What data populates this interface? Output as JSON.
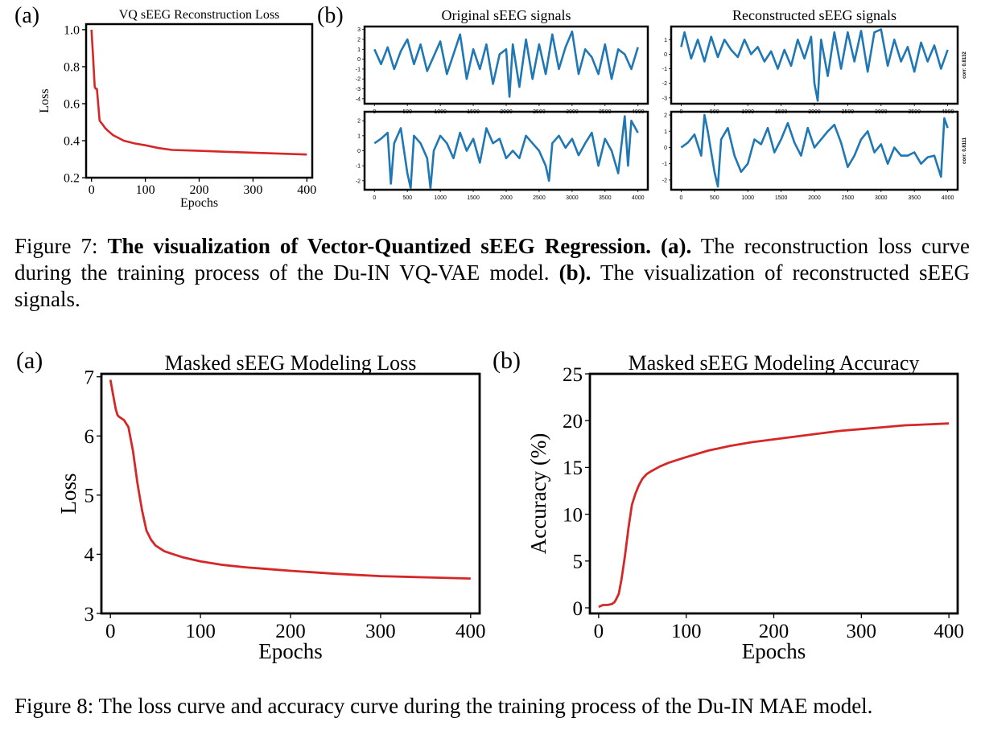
{
  "figure7": {
    "panel_a_label": "(a)",
    "panel_b_label": "(b)",
    "caption": {
      "figure_label": "Figure 7:",
      "bold_title": "The visualization of Vector-Quantized sEEG Regression.",
      "part_a_label": "(a).",
      "part_a_text": "The reconstruction loss curve during the training process of the Du-IN VQ-VAE model.",
      "part_b_label": "(b).",
      "part_b_text": "The visualization of reconstructed sEEG signals."
    }
  },
  "figure8": {
    "panel_a_label": "(a)",
    "panel_b_label": "(b)",
    "caption": "Figure 8: The loss curve and accuracy curve during the training process of the Du-IN MAE model."
  },
  "chart_data": [
    {
      "id": "vq-loss",
      "type": "line",
      "title": "VQ sEEG Reconstruction Loss",
      "xlabel": "Epochs",
      "ylabel": "Loss",
      "xlim": [
        -10,
        410
      ],
      "ylim": [
        0.2,
        1.03
      ],
      "xticks": [
        0,
        100,
        200,
        300,
        400
      ],
      "yticks": [
        0.2,
        0.4,
        0.6,
        0.8,
        1.0
      ],
      "ytick_labels": [
        "0.2",
        "0.4",
        "0.6",
        "0.8",
        "1.0"
      ],
      "color": "#d62728",
      "series": [
        {
          "name": "loss",
          "x": [
            0,
            3,
            6,
            8,
            10,
            13,
            15,
            17,
            20,
            25,
            30,
            40,
            50,
            60,
            80,
            100,
            125,
            150,
            200,
            250,
            300,
            350,
            400
          ],
          "y": [
            1.0,
            0.85,
            0.69,
            0.68,
            0.68,
            0.58,
            0.51,
            0.5,
            0.49,
            0.47,
            0.455,
            0.43,
            0.415,
            0.4,
            0.385,
            0.375,
            0.36,
            0.35,
            0.345,
            0.34,
            0.335,
            0.33,
            0.325
          ]
        }
      ]
    },
    {
      "id": "seeg-original",
      "type": "line",
      "title": "Original sEEG signals",
      "color": "#1f77b4",
      "xticks": [
        0,
        500,
        1000,
        1500,
        2000,
        2500,
        3000,
        3500,
        4000
      ],
      "subplots": [
        {
          "name": "original-channel-1",
          "ylim": [
            -4.5,
            3.3
          ],
          "yticks": [
            -4,
            -3,
            -2,
            -1,
            0,
            1,
            2,
            3
          ],
          "x": [
            0,
            100,
            200,
            300,
            400,
            500,
            600,
            700,
            800,
            900,
            1000,
            1100,
            1200,
            1300,
            1400,
            1500,
            1600,
            1700,
            1800,
            1900,
            2000,
            2050,
            2100,
            2200,
            2300,
            2400,
            2500,
            2600,
            2700,
            2800,
            2900,
            3000,
            3100,
            3200,
            3300,
            3400,
            3500,
            3600,
            3700,
            3800,
            3900,
            4000
          ],
          "y": [
            1.0,
            -0.5,
            1.2,
            -1.0,
            0.8,
            2.0,
            -0.5,
            1.5,
            -1.2,
            0.3,
            1.8,
            -1.5,
            0.5,
            2.5,
            -2.0,
            1.0,
            -1.0,
            1.5,
            -2.5,
            0.5,
            1.0,
            -3.8,
            1.5,
            -2.8,
            2.0,
            -2.0,
            1.5,
            -1.5,
            2.5,
            -1.0,
            1.2,
            2.8,
            -1.5,
            1.0,
            0.2,
            -1.5,
            1.5,
            -2.0,
            1.0,
            0.5,
            -1.0,
            1.2
          ]
        },
        {
          "name": "original-channel-2",
          "ylim": [
            -2.6,
            2.6
          ],
          "yticks": [
            -2,
            -1,
            0,
            1,
            2
          ],
          "x": [
            0,
            100,
            200,
            250,
            300,
            400,
            500,
            550,
            600,
            700,
            800,
            850,
            900,
            1000,
            1100,
            1200,
            1300,
            1400,
            1500,
            1600,
            1700,
            1800,
            1900,
            2000,
            2100,
            2200,
            2300,
            2400,
            2500,
            2600,
            2650,
            2700,
            2800,
            2900,
            3000,
            3100,
            3200,
            3300,
            3400,
            3500,
            3600,
            3700,
            3800,
            3850,
            3900,
            4000
          ],
          "y": [
            0.5,
            0.8,
            1.2,
            -2.2,
            0.5,
            1.5,
            -1.5,
            -2.5,
            1.0,
            0.5,
            -0.5,
            -2.5,
            0.0,
            1.0,
            0.5,
            -0.5,
            1.2,
            0.0,
            0.8,
            -0.8,
            1.5,
            0.5,
            0.8,
            -0.5,
            0.0,
            -0.5,
            1.0,
            0.5,
            0.0,
            -1.0,
            -2.0,
            0.5,
            1.0,
            0.2,
            0.8,
            -0.3,
            0.5,
            1.2,
            -1.0,
            0.8,
            0.0,
            -1.5,
            2.3,
            -1.0,
            2.0,
            1.2
          ]
        }
      ]
    },
    {
      "id": "seeg-reconstructed",
      "type": "line",
      "title": "Reconstructed sEEG signals",
      "color": "#1f77b4",
      "xticks": [
        0,
        500,
        1000,
        1500,
        2000,
        2500,
        3000,
        3500,
        4000
      ],
      "subplots": [
        {
          "name": "reconstructed-channel-1",
          "side_label": "corr: 0.8132",
          "ylim": [
            -3.4,
            1.9
          ],
          "yticks": [
            -3,
            -2,
            -1,
            0,
            1
          ],
          "x": [
            0,
            50,
            150,
            250,
            350,
            450,
            550,
            650,
            750,
            850,
            950,
            1050,
            1150,
            1250,
            1350,
            1450,
            1550,
            1650,
            1750,
            1850,
            1950,
            2000,
            2050,
            2100,
            2200,
            2300,
            2400,
            2500,
            2600,
            2700,
            2800,
            2900,
            3000,
            3100,
            3200,
            3300,
            3400,
            3500,
            3600,
            3700,
            3800,
            3900,
            4000
          ],
          "y": [
            0.5,
            1.5,
            -0.3,
            1.0,
            -0.5,
            1.2,
            -0.2,
            1.0,
            0.3,
            -0.2,
            1.0,
            0.0,
            0.5,
            -0.5,
            0.2,
            -1.0,
            0.3,
            -0.8,
            1.0,
            -0.3,
            1.2,
            -2.0,
            -3.2,
            1.0,
            -1.5,
            1.5,
            -1.0,
            1.5,
            -0.5,
            1.6,
            -1.2,
            1.5,
            1.7,
            -0.8,
            1.0,
            -0.5,
            0.5,
            -1.2,
            0.8,
            -0.5,
            0.6,
            -1.0,
            0.3
          ]
        },
        {
          "name": "reconstructed-channel-2",
          "side_label": "corr: 0.8111",
          "ylim": [
            -2.6,
            2.2
          ],
          "yticks": [
            -2,
            -1,
            0,
            1,
            2
          ],
          "x": [
            0,
            100,
            200,
            300,
            350,
            400,
            500,
            550,
            600,
            700,
            800,
            900,
            1000,
            1100,
            1200,
            1300,
            1400,
            1500,
            1600,
            1700,
            1800,
            1900,
            2000,
            2100,
            2200,
            2300,
            2400,
            2500,
            2600,
            2700,
            2800,
            2900,
            3000,
            3100,
            3200,
            3300,
            3400,
            3500,
            3600,
            3700,
            3800,
            3900,
            3950,
            4000
          ],
          "y": [
            0.0,
            0.3,
            0.8,
            -0.5,
            2.0,
            1.0,
            -1.5,
            -2.4,
            0.5,
            1.2,
            -0.5,
            -1.5,
            -1.0,
            0.5,
            0.2,
            1.2,
            -0.3,
            0.5,
            1.5,
            0.3,
            -0.5,
            1.2,
            0.0,
            0.5,
            1.0,
            1.4,
            0.3,
            -1.2,
            -0.5,
            0.5,
            1.0,
            -0.3,
            0.2,
            -1.0,
            0.0,
            -0.5,
            -0.5,
            -0.3,
            -1.0,
            -0.6,
            -0.5,
            -1.8,
            1.8,
            1.2
          ]
        }
      ]
    },
    {
      "id": "mae-loss",
      "type": "line",
      "title": "Masked sEEG Modeling Loss",
      "xlabel": "Epochs",
      "ylabel": "Loss",
      "xlim": [
        -10,
        410
      ],
      "ylim": [
        3,
        7.05
      ],
      "xticks": [
        0,
        100,
        200,
        300,
        400
      ],
      "yticks": [
        3,
        4,
        5,
        6,
        7
      ],
      "color": "#d62728",
      "series": [
        {
          "name": "loss",
          "x": [
            0,
            3,
            6,
            8,
            10,
            15,
            20,
            25,
            30,
            35,
            40,
            45,
            50,
            60,
            70,
            80,
            100,
            125,
            150,
            175,
            200,
            250,
            300,
            350,
            400
          ],
          "y": [
            6.95,
            6.7,
            6.45,
            6.35,
            6.32,
            6.27,
            6.15,
            5.75,
            5.2,
            4.75,
            4.4,
            4.25,
            4.15,
            4.05,
            4.0,
            3.95,
            3.88,
            3.82,
            3.78,
            3.75,
            3.72,
            3.67,
            3.63,
            3.61,
            3.59
          ]
        }
      ]
    },
    {
      "id": "mae-accuracy",
      "type": "line",
      "title": "Masked sEEG Modeling Accuracy",
      "xlabel": "Epochs",
      "ylabel": "Accuracy (%)",
      "xlim": [
        -10,
        410
      ],
      "ylim": [
        -0.6,
        25
      ],
      "xticks": [
        0,
        100,
        200,
        300,
        400
      ],
      "yticks": [
        0,
        5,
        10,
        15,
        20,
        25
      ],
      "color": "#d62728",
      "series": [
        {
          "name": "accuracy",
          "x": [
            0,
            5,
            10,
            15,
            18,
            20,
            23,
            26,
            30,
            34,
            38,
            42,
            46,
            50,
            55,
            60,
            70,
            80,
            100,
            125,
            150,
            175,
            200,
            225,
            250,
            275,
            300,
            325,
            350,
            375,
            400
          ],
          "y": [
            0.1,
            0.3,
            0.3,
            0.4,
            0.6,
            0.9,
            1.5,
            3.0,
            5.5,
            8.5,
            11.0,
            12.2,
            13.1,
            13.8,
            14.3,
            14.6,
            15.1,
            15.5,
            16.1,
            16.8,
            17.3,
            17.7,
            18.0,
            18.3,
            18.6,
            18.9,
            19.1,
            19.3,
            19.5,
            19.6,
            19.7
          ]
        }
      ]
    }
  ]
}
